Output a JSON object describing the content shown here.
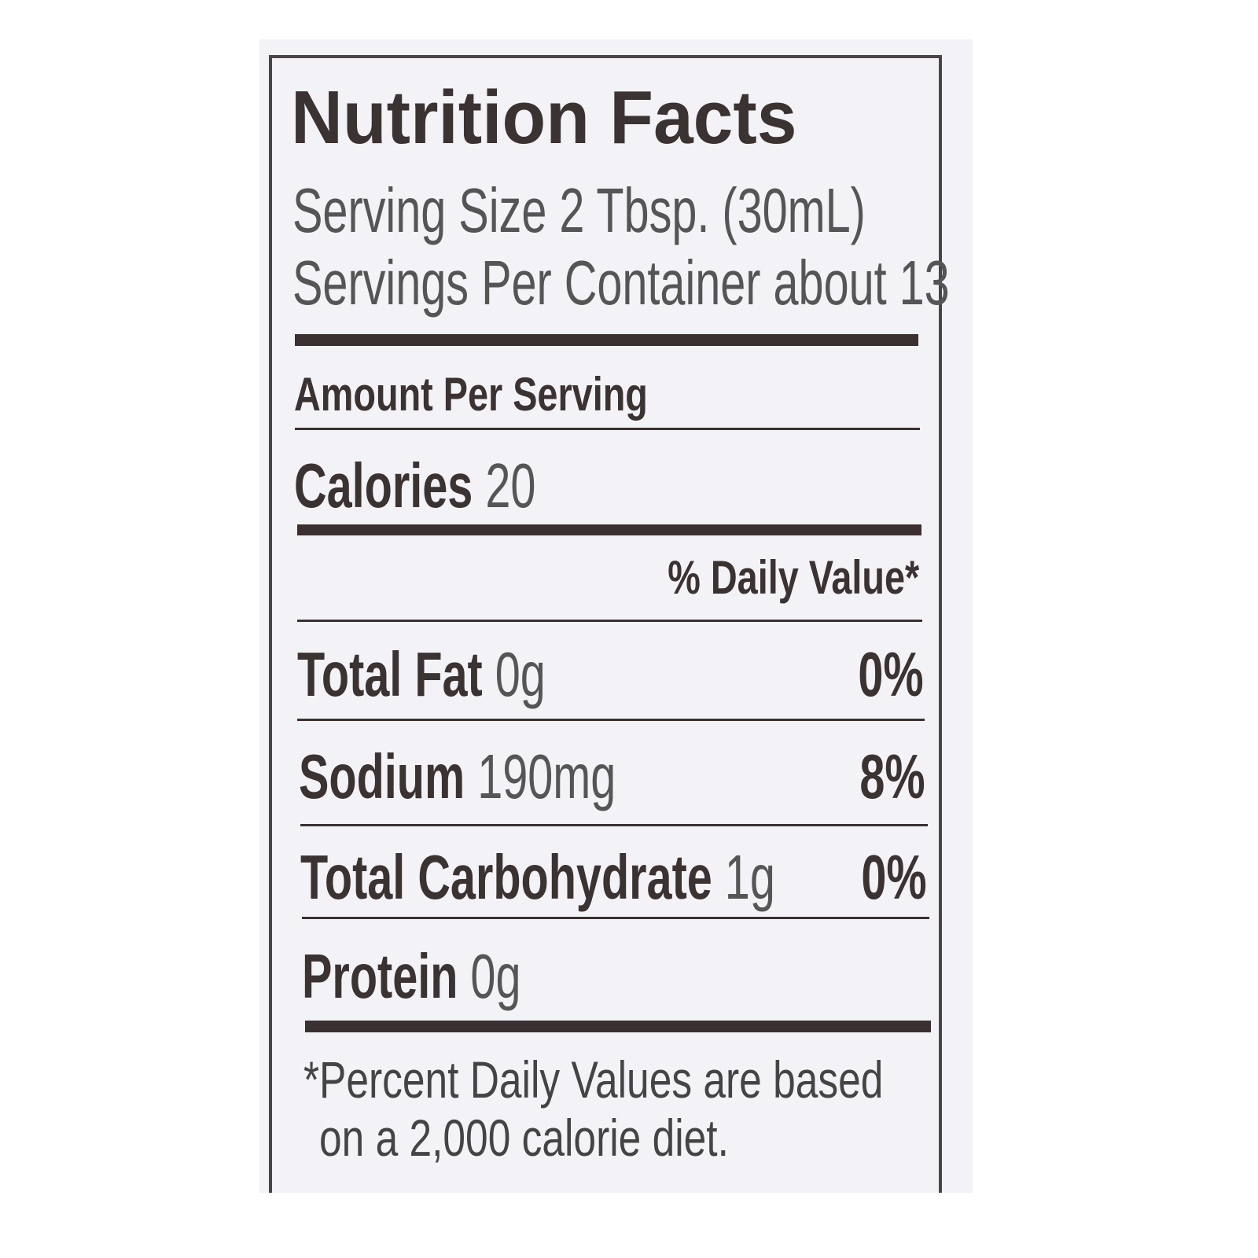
{
  "label": {
    "title": "Nutrition Facts",
    "serving_size": "Serving Size 2 Tbsp. (30mL)",
    "servings_per_container": "Servings Per Container about 13",
    "amount_per_serving": "Amount Per Serving",
    "calories_label": "Calories",
    "calories_value": "20",
    "daily_value_header": "% Daily Value*",
    "nutrients": [
      {
        "name": "Total Fat",
        "amount": "0g",
        "dv": "0%"
      },
      {
        "name": "Sodium",
        "amount": "190mg",
        "dv": "8%"
      },
      {
        "name": "Total Carbohydrate",
        "amount": "1g",
        "dv": "0%"
      },
      {
        "name": "Protein",
        "amount": "0g",
        "dv": ""
      }
    ],
    "footnote_line1": "*Percent Daily Values are based",
    "footnote_line2": "on a 2,000 calorie diet."
  }
}
